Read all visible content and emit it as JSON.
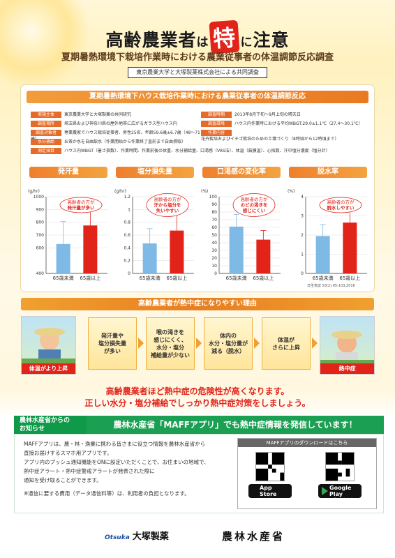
{
  "header": {
    "title_part1": "高齢農業者",
    "title_part2": "は",
    "title_part3": "特",
    "title_part4": "に",
    "title_part5": "注意",
    "subtitle": "夏期暑熱環境下栽培作業時における農業従事者の体温調節反応調査",
    "joint": "東京農業大学と大塚製薬株式会社による共同調査"
  },
  "card": {
    "title": "夏期暑熱環境下ハウス栽培作業時における農業従事者の体温調節反応",
    "info_left": [
      {
        "tag": "実施主体",
        "text": "東京農業大学と大塚製薬の共同研究"
      },
      {
        "tag": "調査場所",
        "text": "埼玉県および神奈川県の屋外地帯に広がるガラス型ハウス内"
      },
      {
        "tag": "調査対象者",
        "text": "専業農家でハウス栽培従事者、男性25名、年齢59.6歳±6.7歳（48〜71歳）"
      }
    ],
    "info_right": [
      {
        "tag": "調査時期",
        "text": "2013年8月下旬〜9月上旬の晴天日"
      },
      {
        "tag": "調査環境",
        "text": "ハウス内作業時における平均WBGT:29.0±1.1℃（27.4〜30.1℃）"
      },
      {
        "tag": "作業内容",
        "text": "花卉栽培およびイチゴ栽培のための土壌づくり（8時頃から12時頃まで）"
      }
    ],
    "info_full": [
      {
        "tag": "水分補給",
        "text": "お茶か水を自由飲水（作業開始から作業終了直前まで自由摂取）"
      },
      {
        "tag": "測定項目",
        "text": "ハウス内WBGT（暑さ指数）、作業時間、作業前後の体重、水分補給量、口渇感（VAS法）、体温（鼓膜温）、心拍数、汗中塩分濃度（塩分計）"
      }
    ]
  },
  "charts_source": "日生気誌 53(2):95-103,2016",
  "chart_data": [
    {
      "type": "bar",
      "title": "発汗量",
      "ylabel": "(g/hr)",
      "ylim": [
        400,
        1000
      ],
      "yticks": [
        400,
        600,
        700,
        800,
        900,
        1000
      ],
      "categories": [
        "65歳未満",
        "65歳以上"
      ],
      "values": [
        630,
        775
      ],
      "err": [
        175,
        130
      ],
      "colors": [
        "#7fb9e6",
        "#e2231a"
      ],
      "bubble": [
        "高齢者の方が",
        "発汗量が多い"
      ]
    },
    {
      "type": "bar",
      "title": "塩分損失量",
      "ylabel": "(g/hr)",
      "ylim": [
        0,
        1.2
      ],
      "yticks": [
        0,
        0.2,
        0.4,
        0.6,
        0.8,
        1.0,
        1.2
      ],
      "categories": [
        "65歳未満",
        "65歳以上"
      ],
      "values": [
        0.47,
        0.67
      ],
      "err": [
        0.23,
        0.28
      ],
      "colors": [
        "#7fb9e6",
        "#e2231a"
      ],
      "bubble": [
        "高齢者の方が",
        "汗から塩分を",
        "失いやすい"
      ]
    },
    {
      "type": "bar",
      "title": "口渇感の変化率",
      "ylabel": "(%)",
      "ylim": [
        0,
        100
      ],
      "yticks": [
        0,
        10,
        20,
        30,
        40,
        50,
        60,
        70,
        80,
        90,
        100
      ],
      "categories": [
        "65歳未満",
        "65歳以上"
      ],
      "values": [
        61,
        44
      ],
      "err": [
        16,
        12
      ],
      "colors": [
        "#7fb9e6",
        "#e2231a"
      ],
      "bubble": [
        "高齢者の方が",
        "のどの渇きを",
        "感じにくい"
      ]
    },
    {
      "type": "bar",
      "title": "脱水率",
      "ylabel": "(%)",
      "ylim": [
        0,
        4
      ],
      "yticks": [
        0,
        1,
        2,
        3,
        4
      ],
      "categories": [
        "65歳未満",
        "65歳以上"
      ],
      "values": [
        1.95,
        2.65
      ],
      "err": [
        0.6,
        0.65
      ],
      "colors": [
        "#7fb9e6",
        "#e2231a"
      ],
      "bubble": [
        "高齢者の方が",
        "脱水しやすい"
      ]
    }
  ],
  "reasons": {
    "title": "高齢農業者が熱中症になりやすい理由",
    "left_label": "体温がより上昇",
    "right_label": "熱中症",
    "boxes": [
      [
        "発汗量や",
        "塩分損失量",
        "が多い"
      ],
      [
        "喉の渇きを",
        "感じにくく、",
        "水分・塩分",
        "補給量が少ない"
      ],
      [
        "体内の",
        "水分・塩分量が",
        "減る（脱水）"
      ],
      [
        "体温が",
        "さらに上昇"
      ]
    ]
  },
  "warning": {
    "line1": "高齢農業者ほど熱中症の危険性が高くなります。",
    "line2": "正しい水分・塩分補給でしっかり熱中症対策をしましょう。"
  },
  "notice": {
    "label1": "農林水産省からの",
    "label2": "お知らせ",
    "banner": "農林水産省「MAFFアプリ」でも熱中症情報を発信しています！",
    "body": [
      "MAFFアプリは、農・林・漁業に携わる皆さまに役立つ情報を農林水産省から",
      "直接お届けするスマホ用アプリです。",
      "アプリ内のプッシュ通知機能をONに設定いただくことで、お住まいの地域で、",
      "熱中症アラート・熱中症警戒アラートが発表された際に",
      "通知を受け取ることができます。"
    ],
    "note": "※通信に要する費用（データ通信料等）は、利用者の負担となります。",
    "download_title": "MAFFアプリのダウンロードはこちら",
    "appstore_line1": "App Store",
    "appstore_line2": "からダウンロード",
    "gplay_line1": "Google Play",
    "gplay_line2": "で手に入れよう"
  },
  "footer": {
    "otsuka_logo": "Otsuka",
    "otsuka": "大塚製薬",
    "maff": "農林水産省"
  }
}
